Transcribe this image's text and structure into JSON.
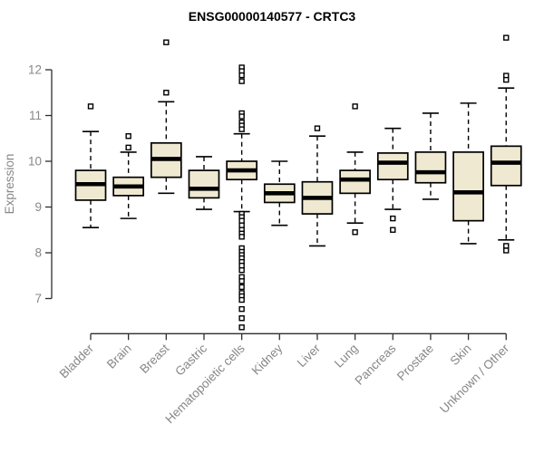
{
  "page": {
    "title": "ENSG00000140577 - CRTC3"
  },
  "chart_data": {
    "type": "boxplot",
    "title": "ENSG00000140577 - CRTC3",
    "xlabel": "",
    "ylabel": "Expression",
    "y_ticks": [
      7,
      8,
      9,
      10,
      11,
      12
    ],
    "ylim": [
      6.2,
      12.9
    ],
    "grid": false,
    "legend": "none",
    "whisker_style": "dashed",
    "outlier_marker": "open-square",
    "categories": [
      "Bladder",
      "Brain",
      "Breast",
      "Gastric",
      "Hematopoietic cells",
      "Kidney",
      "Liver",
      "Lung",
      "Pancreas",
      "Prostate",
      "Skin",
      "Unknown / Other"
    ],
    "boxes": [
      {
        "category": "Bladder",
        "low": 8.55,
        "q1": 9.15,
        "median": 9.5,
        "q3": 9.8,
        "high": 10.65,
        "outliers": [
          11.2
        ]
      },
      {
        "category": "Brain",
        "low": 8.75,
        "q1": 9.25,
        "median": 9.45,
        "q3": 9.65,
        "high": 10.2,
        "outliers": [
          10.55,
          10.3
        ]
      },
      {
        "category": "Breast",
        "low": 9.3,
        "q1": 9.65,
        "median": 10.05,
        "q3": 10.4,
        "high": 11.3,
        "outliers": [
          12.6,
          11.5
        ]
      },
      {
        "category": "Gastric",
        "low": 8.95,
        "q1": 9.2,
        "median": 9.4,
        "q3": 9.8,
        "high": 10.1,
        "outliers": []
      },
      {
        "category": "Hematopoietic cells",
        "low": 8.9,
        "q1": 9.6,
        "median": 9.8,
        "q3": 10.0,
        "high": 10.6,
        "outliers": [
          12.05,
          11.97,
          11.88,
          11.75,
          11.05,
          10.98,
          10.85,
          10.78,
          10.7,
          8.85,
          8.78,
          8.7,
          8.6,
          8.5,
          8.42,
          8.35,
          8.1,
          8.02,
          7.95,
          7.88,
          7.8,
          7.72,
          7.62,
          7.47,
          7.38,
          7.25,
          7.12,
          7.05,
          6.97,
          6.77,
          6.57,
          6.37
        ]
      },
      {
        "category": "Kidney",
        "low": 8.6,
        "q1": 9.1,
        "median": 9.3,
        "q3": 9.5,
        "high": 10.0,
        "outliers": []
      },
      {
        "category": "Liver",
        "low": 8.15,
        "q1": 8.85,
        "median": 9.2,
        "q3": 9.55,
        "high": 10.55,
        "outliers": [
          10.72
        ]
      },
      {
        "category": "Lung",
        "low": 8.65,
        "q1": 9.3,
        "median": 9.6,
        "q3": 9.8,
        "high": 10.2,
        "outliers": [
          11.2,
          8.45
        ]
      },
      {
        "category": "Pancreas",
        "low": 8.95,
        "q1": 9.6,
        "median": 9.97,
        "q3": 10.18,
        "high": 10.72,
        "outliers": [
          8.75,
          8.5
        ]
      },
      {
        "category": "Prostate",
        "low": 9.17,
        "q1": 9.53,
        "median": 9.76,
        "q3": 10.2,
        "high": 11.05,
        "outliers": []
      },
      {
        "category": "Skin",
        "low": 8.2,
        "q1": 8.7,
        "median": 9.32,
        "q3": 10.2,
        "high": 11.27,
        "outliers": []
      },
      {
        "category": "Unknown / Other",
        "low": 8.28,
        "q1": 9.47,
        "median": 9.97,
        "q3": 10.33,
        "high": 11.6,
        "outliers": [
          12.7,
          11.87,
          11.78,
          8.15,
          8.05
        ]
      }
    ],
    "colors": {
      "box_fill": "#efe9d1",
      "box_border": "#000000",
      "median": "#000000",
      "whisker": "#000000",
      "axis": "#2e2e2e",
      "tick_label": "#878787",
      "title": "#000000",
      "background": "#ffffff"
    }
  }
}
